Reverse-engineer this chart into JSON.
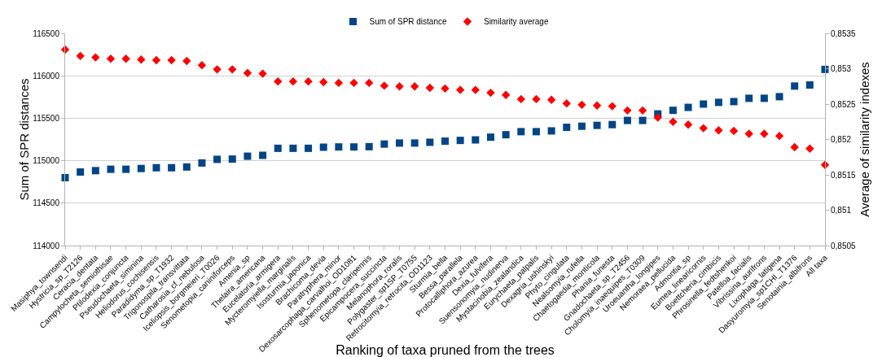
{
  "chart_data": {
    "type": "scatter",
    "xlabel": "Ranking of taxa pruned from the trees",
    "ylabel": "Sum of SPR distances",
    "y2label": "Average of similarity indexes",
    "categories": [
      "Masiphya_townsendi",
      "Hystricia_sp_T2126",
      "Ceracia_dentata",
      "Campylocheta_semiothisae",
      "Ptilodexia_conjuncta",
      "Pseudochaeta_siminina",
      "Heliodorus_cochisensis",
      "Paradidyma_sp_T1932",
      "Trigonospila_transvittata",
      "Catharosia_cf_nebulosa",
      "Iceliopsis_borgmeieri_T0026",
      "Senometopia_caniniforceps",
      "Amenia_sp",
      "Thelaira_americana",
      "Eucelatoria_armigera",
      "Mycteromyiella_marginalis",
      "Isosturmia_japonica",
      "Brachicoma_devia",
      "Paratryphera_minor",
      "Dexosarcophaga_carvalhoi_OD1081",
      "Sphenometopa_claripennis",
      "Epicampocera_succincta",
      "Melanophora_roralis",
      "Polygaster_sp1SP_T0755",
      "Retrocitomyia_retrocita_OD1123",
      "Sturmia_bella",
      "Bessa_parallela",
      "Protocalliphora_azurea",
      "Dexia_fulvifera",
      "Suensonomyia_nudinerva",
      "Mystacinobia_zealandica",
      "Eurychaeta_palpalis",
      "Dexagria_ushinskyi",
      "Phyto_cingulata",
      "Nealsomyia_rufella",
      "Chaetogaedia_monticola",
      "Phania_funesta",
      "Gnadochaeta_sp_T2456",
      "Cholomyia_inaequipes_T0309",
      "Uroeuantha_longipes",
      "Nemoraea_pellucida",
      "Admontia_sp",
      "Eumea_linearicornis",
      "Boettcheria_cimbicis",
      "Phrosinella_fedtshenkoi",
      "Patelloa_facialis",
      "Vibrissina_aurifrons",
      "Lixophaga_latigena",
      "Dasyuromyia_sp1CHI_T1376",
      "Senotainia_albifrons",
      "All taxa"
    ],
    "series": [
      {
        "name": "Sum of SPR distance",
        "color": "#004586",
        "marker": "square",
        "values": [
          114800,
          114867,
          114883,
          114899,
          114899,
          114908,
          114917,
          114917,
          114926,
          114973,
          115016,
          115019,
          115053,
          115063,
          115146,
          115146,
          115146,
          115159,
          115162,
          115162,
          115165,
          115196,
          115208,
          115208,
          115217,
          115230,
          115239,
          115245,
          115277,
          115306,
          115342,
          115342,
          115351,
          115393,
          115406,
          115416,
          115425,
          115474,
          115474,
          115551,
          115593,
          115628,
          115667,
          115687,
          115696,
          115735,
          115735,
          115754,
          115879,
          115892,
          116075
        ]
      },
      {
        "name": "Similarity average",
        "color": "#ff0000",
        "marker": "diamond",
        "axis": "y2",
        "values": [
          0.85327,
          0.85318,
          0.85316,
          0.85314,
          0.85314,
          0.85313,
          0.85312,
          0.85312,
          0.85311,
          0.85305,
          0.85299,
          0.85299,
          0.85294,
          0.85293,
          0.85282,
          0.85282,
          0.85282,
          0.85281,
          0.8528,
          0.8528,
          0.8528,
          0.85276,
          0.85275,
          0.85275,
          0.85273,
          0.85272,
          0.8527,
          0.8527,
          0.85266,
          0.85263,
          0.85257,
          0.85257,
          0.85256,
          0.85251,
          0.85249,
          0.85248,
          0.85247,
          0.85241,
          0.85241,
          0.85231,
          0.85225,
          0.85221,
          0.85216,
          0.85213,
          0.85212,
          0.85208,
          0.85208,
          0.85205,
          0.85189,
          0.85187,
          0.85164
        ]
      }
    ],
    "ylim": [
      114000,
      116500
    ],
    "yticks": [
      114000,
      114500,
      115000,
      115500,
      116000,
      116500
    ],
    "y2lim": [
      0.8505,
      0.8535
    ],
    "y2ticks": [
      {
        "value": 0.8505,
        "label": "0,8505"
      },
      {
        "value": 0.851,
        "label": "0,851"
      },
      {
        "value": 0.8515,
        "label": "0,8515"
      },
      {
        "value": 0.852,
        "label": "0,852"
      },
      {
        "value": 0.8525,
        "label": "0,8525"
      },
      {
        "value": 0.853,
        "label": "0,853"
      },
      {
        "value": 0.8535,
        "label": "0,8535"
      }
    ],
    "grid": "y",
    "legend": "top"
  }
}
